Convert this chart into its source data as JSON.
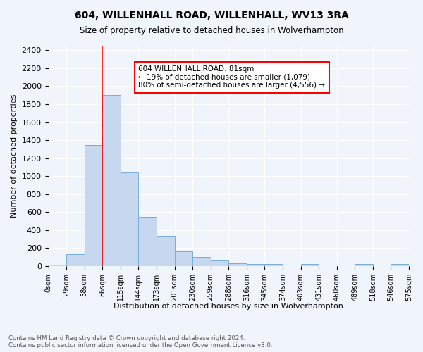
{
  "title1": "604, WILLENHALL ROAD, WILLENHALL, WV13 3RA",
  "title2": "Size of property relative to detached houses in Wolverhampton",
  "xlabel": "Distribution of detached houses by size in Wolverhampton",
  "ylabel_full": "Number of detached properties",
  "bar_values": [
    15,
    130,
    1350,
    1900,
    1040,
    545,
    335,
    165,
    105,
    60,
    30,
    25,
    20,
    0,
    20,
    0,
    0,
    20,
    0,
    20
  ],
  "bar_labels": [
    "0sqm",
    "29sqm",
    "58sqm",
    "86sqm",
    "115sqm",
    "144sqm",
    "173sqm",
    "201sqm",
    "230sqm",
    "259sqm",
    "288sqm",
    "316sqm",
    "345sqm",
    "374sqm",
    "403sqm",
    "431sqm",
    "460sqm",
    "489sqm",
    "518sqm",
    "546sqm",
    "575sqm"
  ],
  "bar_color": "#c5d8f0",
  "bar_edge_color": "#7aaed6",
  "vline_x": 3,
  "vline_color": "red",
  "annotation_text": "604 WILLENHALL ROAD: 81sqm\n← 19% of detached houses are smaller (1,079)\n80% of semi-detached houses are larger (4,556) →",
  "annotation_box_color": "white",
  "annotation_box_edgecolor": "red",
  "ylim": [
    0,
    2450
  ],
  "yticks": [
    0,
    200,
    400,
    600,
    800,
    1000,
    1200,
    1400,
    1600,
    1800,
    2000,
    2200,
    2400
  ],
  "footer_line1": "Contains HM Land Registry data © Crown copyright and database right 2024.",
  "footer_line2": "Contains public sector information licensed under the Open Government Licence v3.0.",
  "background_color": "#f0f5fc"
}
